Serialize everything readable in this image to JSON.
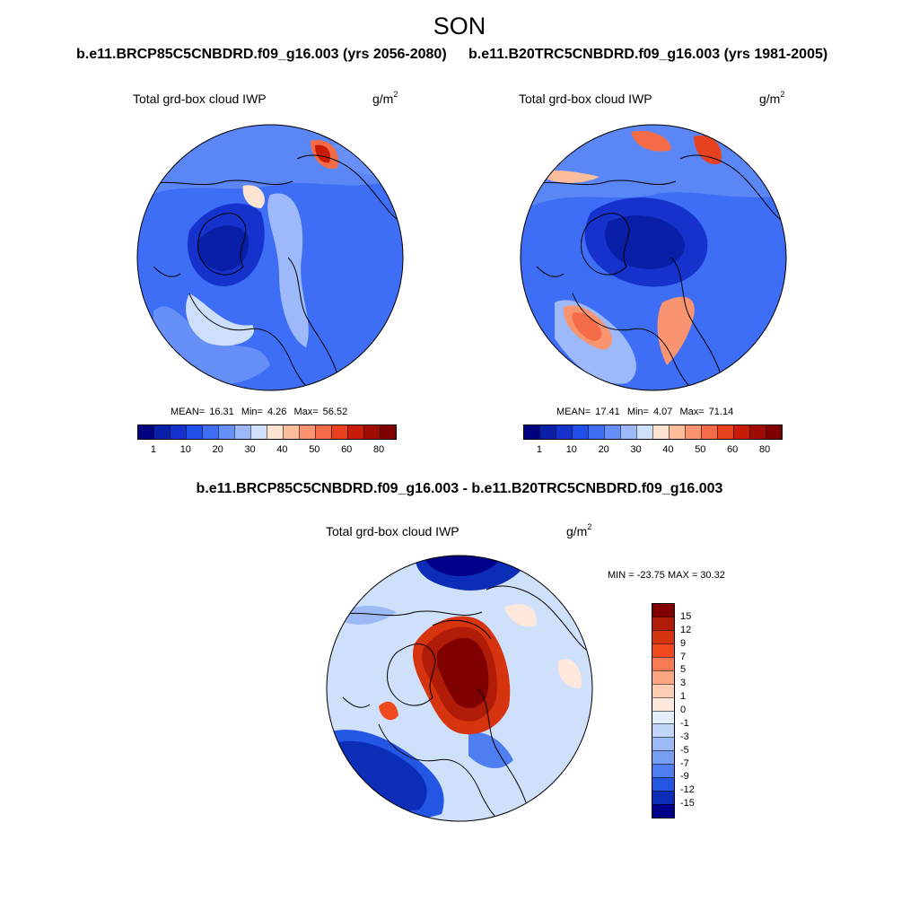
{
  "figure": {
    "season_title": "SON",
    "run1_title": "b.e11.BRCP85C5CNBDRD.f09_g16.003 (yrs 2056-2080)",
    "run2_title": "b.e11.B20TRC5CNBDRD.f09_g16.003 (yrs 1981-2005)",
    "diff_title": "b.e11.BRCP85C5CNBDRD.f09_g16.003 - b.e11.B20TRC5CNBDRD.f09_g16.003"
  },
  "panels": [
    {
      "variable_label": "Total grd-box cloud IWP",
      "units_base": "g/m",
      "units_exp": "2",
      "stats": {
        "mean_label": "MEAN=",
        "mean": "16.31",
        "min_label": "Min=",
        "min": "4.26",
        "max_label": "Max=",
        "max": "56.52"
      }
    },
    {
      "variable_label": "Total grd-box cloud IWP",
      "units_base": "g/m",
      "units_exp": "2",
      "stats": {
        "mean_label": "MEAN=",
        "mean": "17.41",
        "min_label": "Min=",
        "min": "4.07",
        "max_label": "Max=",
        "max": "71.14"
      }
    },
    {
      "variable_label": "Total grd-box cloud IWP",
      "units_base": "g/m",
      "units_exp": "2",
      "stats_text": "MIN = -23.75 MAX =  30.32"
    }
  ],
  "abs_colorbar": {
    "colors": [
      "#000080",
      "#0a1fa8",
      "#1533cc",
      "#1f4fe8",
      "#3d6ef5",
      "#6690f7",
      "#9db9f9",
      "#cddffb",
      "#fde3d1",
      "#fbbd9b",
      "#f99470",
      "#f46b47",
      "#e8411f",
      "#c91c08",
      "#a00c03",
      "#800000"
    ],
    "labels": [
      "1",
      "10",
      "20",
      "30",
      "40",
      "50",
      "60",
      "80"
    ]
  },
  "diff_colorbar": {
    "colors": [
      "#800000",
      "#b01c08",
      "#d6330f",
      "#f0491e",
      "#f77a52",
      "#fba583",
      "#fdcdb4",
      "#fee8dc",
      "#e3eefd",
      "#c2d6fa",
      "#9dbaf7",
      "#789ef4",
      "#4f7ef0",
      "#2456e4",
      "#0b2db8",
      "#00008a"
    ],
    "labels": [
      "15",
      "12",
      "9",
      "7",
      "5",
      "3",
      "1",
      "0",
      "-1",
      "-3",
      "-5",
      "-7",
      "-9",
      "-12",
      "-15"
    ]
  },
  "map_style": {
    "ocean_background": "#3f6fe8",
    "land_outline": "#000000"
  }
}
